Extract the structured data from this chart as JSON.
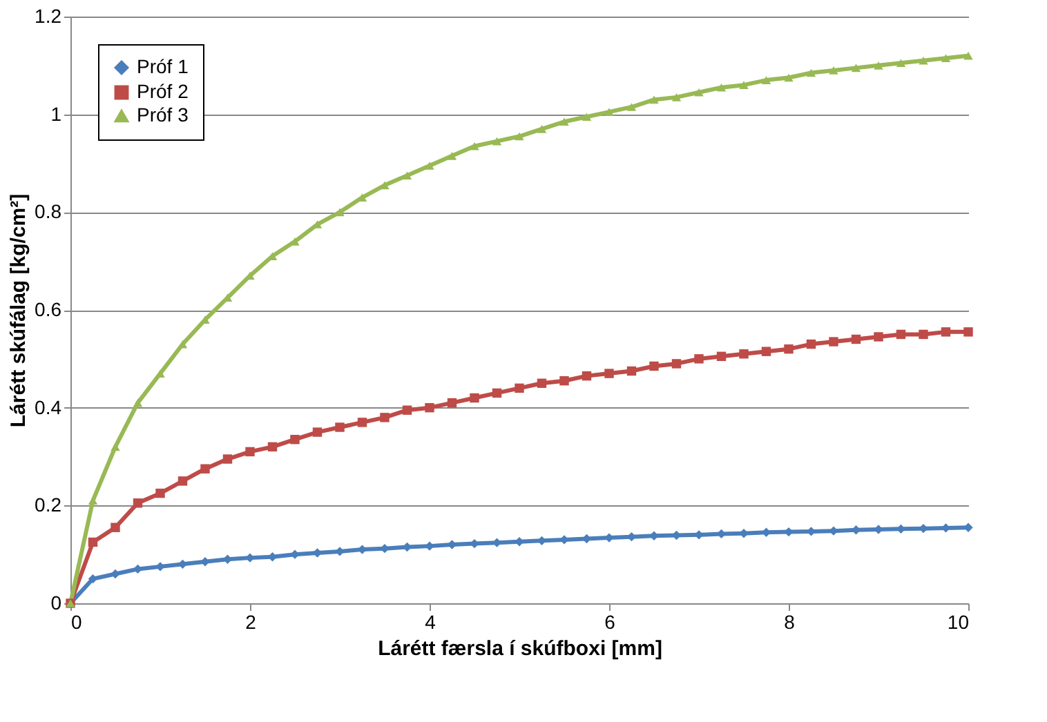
{
  "chart_data": {
    "type": "line",
    "xlabel": "Lárétt færsla í skúfboxi [mm]",
    "ylabel": "Lárétt skúfálag [kg/cm²]",
    "x": [
      0,
      0.25,
      0.5,
      0.75,
      1,
      1.25,
      1.5,
      1.75,
      2,
      2.25,
      2.5,
      2.75,
      3,
      3.25,
      3.5,
      3.75,
      4,
      4.25,
      4.5,
      4.75,
      5,
      5.25,
      5.5,
      5.75,
      6,
      6.25,
      6.5,
      6.75,
      7,
      7.25,
      7.5,
      7.75,
      8,
      8.25,
      8.5,
      8.75,
      9,
      9.25,
      9.5,
      9.75,
      10
    ],
    "series": [
      {
        "name": "Próf 1",
        "color": "#4a7ebb",
        "marker": "diamond",
        "values": [
          0,
          0.05,
          0.06,
          0.07,
          0.075,
          0.08,
          0.085,
          0.09,
          0.093,
          0.095,
          0.1,
          0.103,
          0.106,
          0.11,
          0.112,
          0.115,
          0.117,
          0.12,
          0.122,
          0.124,
          0.126,
          0.128,
          0.13,
          0.132,
          0.134,
          0.136,
          0.138,
          0.139,
          0.14,
          0.142,
          0.143,
          0.145,
          0.146,
          0.147,
          0.148,
          0.15,
          0.151,
          0.152,
          0.153,
          0.154,
          0.155
        ]
      },
      {
        "name": "Próf 2",
        "color": "#be4b48",
        "marker": "square",
        "values": [
          0,
          0.125,
          0.155,
          0.205,
          0.225,
          0.25,
          0.275,
          0.295,
          0.31,
          0.32,
          0.335,
          0.35,
          0.36,
          0.37,
          0.38,
          0.395,
          0.4,
          0.41,
          0.42,
          0.43,
          0.44,
          0.45,
          0.455,
          0.465,
          0.47,
          0.475,
          0.485,
          0.49,
          0.5,
          0.505,
          0.51,
          0.515,
          0.52,
          0.53,
          0.535,
          0.54,
          0.545,
          0.55,
          0.55,
          0.555,
          0.555
        ]
      },
      {
        "name": "Próf 3",
        "color": "#98b954",
        "marker": "triangle",
        "values": [
          0,
          0.21,
          0.32,
          0.41,
          0.47,
          0.53,
          0.58,
          0.625,
          0.67,
          0.71,
          0.74,
          0.775,
          0.8,
          0.83,
          0.855,
          0.875,
          0.895,
          0.915,
          0.935,
          0.945,
          0.955,
          0.97,
          0.985,
          0.995,
          1.005,
          1.015,
          1.03,
          1.035,
          1.045,
          1.055,
          1.06,
          1.07,
          1.075,
          1.085,
          1.09,
          1.095,
          1.1,
          1.105,
          1.11,
          1.115,
          1.12
        ]
      }
    ],
    "xlim": [
      0,
      10
    ],
    "xticks": [
      0,
      2,
      4,
      6,
      8,
      10
    ],
    "ylim": [
      0,
      1.2
    ],
    "yticks": [
      0,
      0.2,
      0.4,
      0.6,
      0.8,
      1,
      1.2
    ],
    "grid": "y",
    "legend": "top left",
    "line_style": "solid"
  }
}
